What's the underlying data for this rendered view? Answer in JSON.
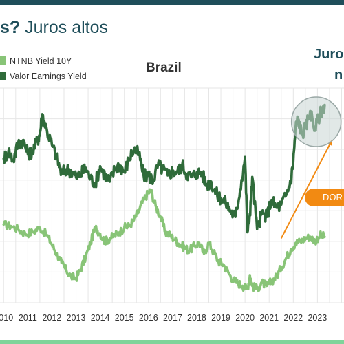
{
  "header": {
    "headline_part1": "s?",
    "headline_part2": " Juros altos"
  },
  "side_title": {
    "line1": "Juro",
    "line2": "n"
  },
  "badge": {
    "text": "DOR"
  },
  "colors": {
    "ntnb": "#88c477",
    "valor": "#2f6b3a",
    "arrow": "#f28a12",
    "header_bar": "#1f4e5a",
    "footer_bar": "#7fd49a",
    "highlight_circle": "#c9d6d3"
  },
  "chart_data": {
    "type": "line",
    "title": "Brazil",
    "xlabel": "",
    "ylabel": "",
    "x_tick_labels": [
      "2010",
      "2011",
      "2012",
      "2013",
      "2014",
      "2015",
      "2016",
      "2017",
      "2018",
      "2019",
      "2020",
      "2021",
      "2022",
      "2023"
    ],
    "xlim": [
      2009.85,
      2024.1
    ],
    "ylim": [
      2,
      16
    ],
    "grid": {
      "vertical": true,
      "horizontal": true
    },
    "legend": {
      "placement": "top-left"
    },
    "series": [
      {
        "name": "NTNB Yield 10Y",
        "color": "#88c477",
        "x": [
          2010.0,
          2010.3,
          2010.6,
          2010.9,
          2011.2,
          2011.5,
          2011.8,
          2012.0,
          2012.2,
          2012.4,
          2012.6,
          2012.8,
          2013.0,
          2013.2,
          2013.4,
          2013.6,
          2013.8,
          2014.0,
          2014.2,
          2014.4,
          2014.6,
          2014.8,
          2015.0,
          2015.2,
          2015.4,
          2015.6,
          2015.8,
          2016.0,
          2016.1,
          2016.3,
          2016.5,
          2016.7,
          2016.9,
          2017.1,
          2017.3,
          2017.5,
          2017.7,
          2017.9,
          2018.1,
          2018.3,
          2018.5,
          2018.7,
          2018.9,
          2019.1,
          2019.3,
          2019.5,
          2019.7,
          2019.9,
          2020.1,
          2020.2,
          2020.3,
          2020.5,
          2020.7,
          2020.9,
          2021.1,
          2021.3,
          2021.5,
          2021.7,
          2021.9,
          2022.1,
          2022.3,
          2022.5,
          2022.7,
          2022.9,
          2023.1,
          2023.3
        ],
        "values": [
          7.1,
          7.0,
          6.8,
          6.5,
          6.6,
          6.9,
          6.4,
          5.8,
          5.2,
          4.6,
          4.1,
          3.7,
          3.6,
          4.2,
          5.0,
          5.9,
          6.9,
          6.5,
          6.0,
          6.2,
          6.4,
          6.6,
          6.9,
          7.0,
          7.4,
          8.0,
          8.7,
          9.2,
          9.3,
          8.3,
          7.6,
          6.6,
          6.4,
          6.1,
          5.8,
          5.6,
          5.4,
          5.7,
          5.9,
          5.2,
          5.9,
          5.3,
          4.7,
          4.5,
          4.0,
          3.5,
          3.3,
          3.1,
          2.9,
          3.8,
          3.1,
          2.9,
          3.3,
          3.1,
          3.4,
          3.7,
          4.3,
          4.9,
          5.5,
          5.9,
          6.0,
          6.2,
          6.3,
          6.0,
          6.4,
          6.3
        ]
      },
      {
        "name": "Valor Earnings Yield",
        "color": "#2f6b3a",
        "x": [
          2010.0,
          2010.2,
          2010.4,
          2010.6,
          2010.8,
          2011.0,
          2011.2,
          2011.4,
          2011.5,
          2011.6,
          2011.8,
          2012.0,
          2012.2,
          2012.4,
          2012.6,
          2012.8,
          2013.0,
          2013.2,
          2013.4,
          2013.6,
          2013.8,
          2014.0,
          2014.2,
          2014.4,
          2014.6,
          2014.8,
          2015.0,
          2015.2,
          2015.4,
          2015.6,
          2015.8,
          2016.0,
          2016.2,
          2016.4,
          2016.6,
          2016.8,
          2017.0,
          2017.2,
          2017.4,
          2017.6,
          2017.8,
          2018.0,
          2018.2,
          2018.4,
          2018.6,
          2018.8,
          2019.0,
          2019.2,
          2019.4,
          2019.6,
          2019.8,
          2020.0,
          2020.1,
          2020.2,
          2020.3,
          2020.5,
          2020.7,
          2020.9,
          2021.1,
          2021.3,
          2021.5,
          2021.7,
          2021.9,
          2022.0,
          2022.1,
          2022.2,
          2022.35,
          2022.5,
          2022.7,
          2022.9,
          2023.1,
          2023.3
        ],
        "values": [
          11.4,
          11.9,
          11.3,
          12.4,
          12.6,
          11.7,
          11.9,
          12.6,
          13.0,
          14.3,
          13.2,
          12.3,
          11.5,
          10.4,
          10.7,
          10.6,
          10.2,
          10.4,
          10.8,
          10.1,
          9.8,
          10.9,
          10.3,
          9.9,
          10.7,
          11.0,
          10.5,
          11.4,
          12.0,
          11.7,
          10.3,
          10.3,
          10.0,
          11.0,
          10.7,
          10.3,
          10.6,
          10.5,
          11.0,
          10.4,
          10.2,
          10.5,
          10.5,
          9.7,
          9.9,
          9.1,
          8.8,
          8.5,
          8.0,
          7.6,
          9.4,
          11.5,
          6.6,
          7.8,
          10.2,
          6.8,
          7.8,
          7.6,
          8.7,
          8.2,
          8.4,
          9.0,
          10.0,
          11.2,
          13.5,
          14.0,
          13.0,
          13.4,
          14.5,
          13.3,
          14.3,
          14.9
        ]
      }
    ],
    "annotations": [
      {
        "type": "arrow",
        "x_from": 2021.5,
        "y_from": 6.2,
        "x_to": 2023.6,
        "y_to": 12.6
      },
      {
        "type": "circle",
        "x_center": 2022.95,
        "y_center": 13.8
      }
    ]
  }
}
